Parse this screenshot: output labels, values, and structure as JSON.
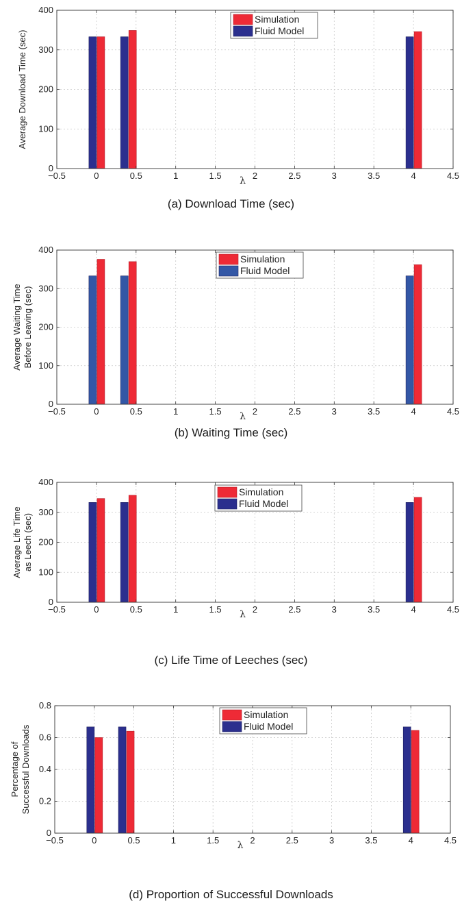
{
  "colors": {
    "simulation": "#ee2a36",
    "fluid_model_dark": "#2b2f8e",
    "fluid_model_light": "#3357a6"
  },
  "chart_data": [
    {
      "type": "bar",
      "caption": "(a)  Download Time (sec)",
      "xlabel": "λ",
      "ylabel": [
        "Average Download Time (sec)"
      ],
      "xlim": [
        -0.5,
        4.5
      ],
      "ylim": [
        0,
        400
      ],
      "xticks": [
        "−0.5",
        "0",
        "0.5",
        "1",
        "1.5",
        "2",
        "2.5",
        "3",
        "3.5",
        "4",
        "4.5"
      ],
      "yticks": [
        "0",
        "100",
        "200",
        "300",
        "400"
      ],
      "grid": true,
      "legend_position": "top-center",
      "categories": [
        0,
        0.4,
        4
      ],
      "series": [
        {
          "name": "Simulation",
          "color": "#ee2a36",
          "values": [
            333,
            349,
            346
          ]
        },
        {
          "name": "Fluid Model",
          "color": "#2b2f8e",
          "values": [
            333,
            333,
            333
          ]
        }
      ]
    },
    {
      "type": "bar",
      "caption": "(b)  Waiting Time (sec)",
      "xlabel": "λ",
      "ylabel": [
        "Average Waiting Time",
        "Before Leaving (sec)"
      ],
      "xlim": [
        -0.5,
        4.5
      ],
      "ylim": [
        0,
        400
      ],
      "xticks": [
        "−0.5",
        "0",
        "0.5",
        "1",
        "1.5",
        "2",
        "2.5",
        "3",
        "3.5",
        "4",
        "4.5"
      ],
      "yticks": [
        "0",
        "100",
        "200",
        "300",
        "400"
      ],
      "grid": true,
      "legend_position": "top-center",
      "categories": [
        0,
        0.4,
        4
      ],
      "series": [
        {
          "name": "Simulation",
          "color": "#ee2a36",
          "values": [
            376,
            370,
            362
          ]
        },
        {
          "name": "Fluid Model",
          "color": "#3357a6",
          "values": [
            333,
            333,
            333
          ]
        }
      ]
    },
    {
      "type": "bar",
      "caption": "(c)  Life Time of Leeches (sec)",
      "xlabel": "λ",
      "ylabel": [
        "Average Life Time",
        "as Leech (sec)"
      ],
      "xlim": [
        -0.5,
        4.5
      ],
      "ylim": [
        0,
        400
      ],
      "xticks": [
        "−0.5",
        "0",
        "0.5",
        "1",
        "1.5",
        "2",
        "2.5",
        "3",
        "3.5",
        "4",
        "4.5"
      ],
      "yticks": [
        "0",
        "100",
        "200",
        "300",
        "400"
      ],
      "grid": true,
      "legend_position": "top-center",
      "categories": [
        0,
        0.4,
        4
      ],
      "series": [
        {
          "name": "Simulation",
          "color": "#ee2a36",
          "values": [
            346,
            357,
            350
          ]
        },
        {
          "name": "Fluid Model",
          "color": "#2b2f8e",
          "values": [
            333,
            333,
            333
          ]
        }
      ]
    },
    {
      "type": "bar",
      "caption": "(d)  Proportion of Successful Downloads",
      "xlabel": "λ",
      "ylabel": [
        "Percentage of",
        "Successful Downloads"
      ],
      "xlim": [
        -0.5,
        4.5
      ],
      "ylim": [
        0,
        0.8
      ],
      "xticks": [
        "−0.5",
        "0",
        "0.5",
        "1",
        "1.5",
        "2",
        "2.5",
        "3",
        "3.5",
        "4",
        "4.5"
      ],
      "yticks": [
        "0",
        "0.2",
        "0.4",
        "0.6",
        "0.8"
      ],
      "grid": true,
      "legend_position": "top-center",
      "categories": [
        0,
        0.4,
        4
      ],
      "series": [
        {
          "name": "Simulation",
          "color": "#ee2a36",
          "values": [
            0.6,
            0.64,
            0.645
          ]
        },
        {
          "name": "Fluid Model",
          "color": "#2b2f8e",
          "values": [
            0.667,
            0.667,
            0.667
          ]
        }
      ]
    }
  ]
}
